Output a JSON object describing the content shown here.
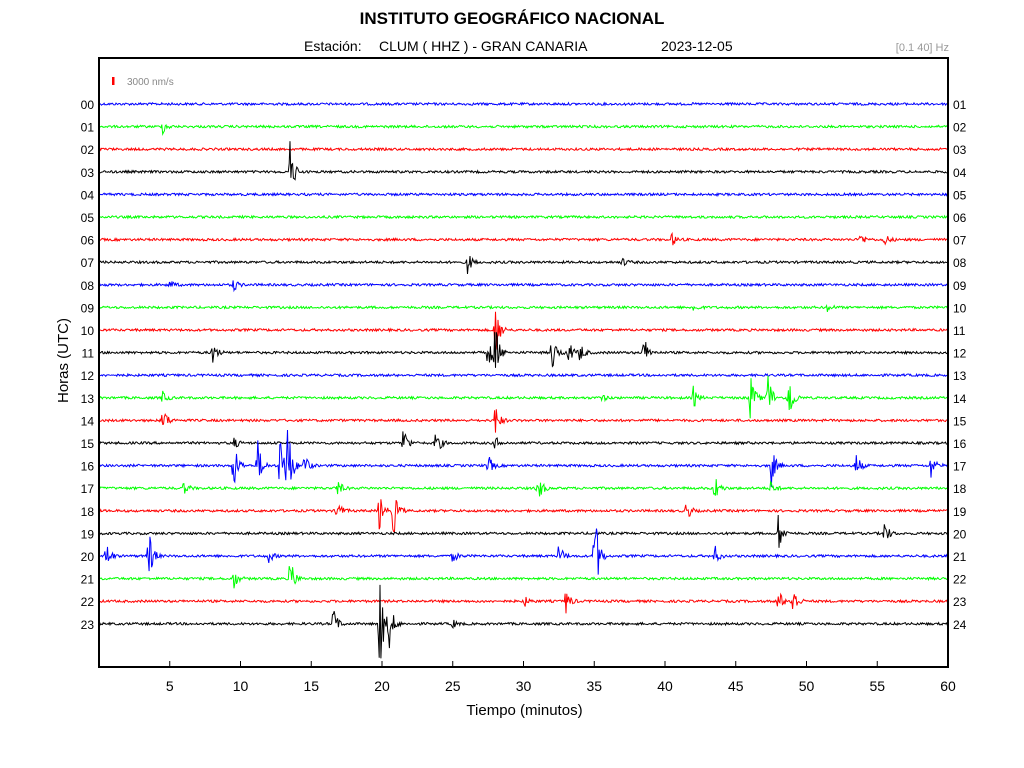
{
  "header": {
    "title": "INSTITUTO GEOGRÁFICO NACIONAL",
    "station_label": "Estación:",
    "station": "CLUM ( HHZ ) - GRAN CANARIA",
    "date": "2023-12-05",
    "filter": "[0.1 40] Hz"
  },
  "chart_data": {
    "type": "line",
    "title": "INSTITUTO GEOGRÁFICO NACIONAL",
    "xlabel": "Tiempo (minutos)",
    "ylabel": "Horas (UTC)",
    "xlim": [
      0,
      60
    ],
    "x_ticks": [
      5,
      10,
      15,
      20,
      25,
      30,
      35,
      40,
      45,
      50,
      55,
      60
    ],
    "scale_label": "3000 nm/s",
    "scale_color": "#ff0000",
    "row_colors": [
      "#0000ff",
      "#00ff00",
      "#ff0000",
      "#000000"
    ],
    "left_labels": [
      "00",
      "01",
      "02",
      "03",
      "04",
      "05",
      "06",
      "07",
      "08",
      "09",
      "10",
      "11",
      "12",
      "13",
      "14",
      "15",
      "16",
      "17",
      "18",
      "19",
      "20",
      "21",
      "22",
      "23"
    ],
    "right_labels": [
      "01",
      "02",
      "03",
      "04",
      "05",
      "06",
      "07",
      "08",
      "09",
      "10",
      "11",
      "12",
      "13",
      "14",
      "15",
      "16",
      "17",
      "18",
      "19",
      "20",
      "21",
      "22",
      "23",
      "24"
    ],
    "events": [
      {
        "hour": 1,
        "min": 4.5,
        "amp": 0.3
      },
      {
        "hour": 3,
        "min": 13.5,
        "amp": 1.4
      },
      {
        "hour": 6,
        "min": 40.5,
        "amp": 0.3
      },
      {
        "hour": 6,
        "min": 53.8,
        "amp": 0.3
      },
      {
        "hour": 6,
        "min": 55.5,
        "amp": 0.3
      },
      {
        "hour": 7,
        "min": 26.0,
        "amp": 0.6
      },
      {
        "hour": 7,
        "min": 37.0,
        "amp": 0.2
      },
      {
        "hour": 8,
        "min": 5.0,
        "amp": 0.2
      },
      {
        "hour": 8,
        "min": 9.5,
        "amp": 0.3
      },
      {
        "hour": 9,
        "min": 42.0,
        "amp": 0.2
      },
      {
        "hour": 9,
        "min": 51.5,
        "amp": 0.2
      },
      {
        "hour": 10,
        "min": 28.0,
        "amp": 1.5
      },
      {
        "hour": 11,
        "min": 8.0,
        "amp": 0.6
      },
      {
        "hour": 11,
        "min": 27.5,
        "amp": 1.0
      },
      {
        "hour": 11,
        "min": 28.0,
        "amp": 1.2
      },
      {
        "hour": 11,
        "min": 32.0,
        "amp": 1.0
      },
      {
        "hour": 11,
        "min": 33.2,
        "amp": 0.6
      },
      {
        "hour": 11,
        "min": 34.0,
        "amp": 0.5
      },
      {
        "hour": 11,
        "min": 38.5,
        "amp": 0.8
      },
      {
        "hour": 13,
        "min": 4.5,
        "amp": 0.3
      },
      {
        "hour": 13,
        "min": 35.5,
        "amp": 0.2
      },
      {
        "hour": 13,
        "min": 42.0,
        "amp": 0.5
      },
      {
        "hour": 13,
        "min": 46.0,
        "amp": 1.3
      },
      {
        "hour": 13,
        "min": 47.2,
        "amp": 1.6
      },
      {
        "hour": 13,
        "min": 48.7,
        "amp": 1.5
      },
      {
        "hour": 14,
        "min": 4.5,
        "amp": 0.7
      },
      {
        "hour": 14,
        "min": 28.0,
        "amp": 0.8
      },
      {
        "hour": 15,
        "min": 9.5,
        "amp": 0.3
      },
      {
        "hour": 15,
        "min": 21.5,
        "amp": 0.8
      },
      {
        "hour": 15,
        "min": 23.8,
        "amp": 0.7
      },
      {
        "hour": 15,
        "min": 28.0,
        "amp": 0.3
      },
      {
        "hour": 16,
        "min": 9.5,
        "amp": 1.3
      },
      {
        "hour": 16,
        "min": 11.2,
        "amp": 1.2
      },
      {
        "hour": 16,
        "min": 12.8,
        "amp": 1.8
      },
      {
        "hour": 16,
        "min": 13.3,
        "amp": 2.3
      },
      {
        "hour": 16,
        "min": 14.5,
        "amp": 0.6
      },
      {
        "hour": 16,
        "min": 27.5,
        "amp": 0.5
      },
      {
        "hour": 16,
        "min": 47.5,
        "amp": 1.0
      },
      {
        "hour": 16,
        "min": 53.5,
        "amp": 0.6
      },
      {
        "hour": 16,
        "min": 58.8,
        "amp": 0.6
      },
      {
        "hour": 17,
        "min": 6.0,
        "amp": 0.3
      },
      {
        "hour": 17,
        "min": 16.8,
        "amp": 0.5
      },
      {
        "hour": 17,
        "min": 31.0,
        "amp": 0.8
      },
      {
        "hour": 17,
        "min": 43.5,
        "amp": 0.7
      },
      {
        "hour": 17,
        "min": 47.5,
        "amp": 0.4
      },
      {
        "hour": 18,
        "min": 16.8,
        "amp": 0.6
      },
      {
        "hour": 18,
        "min": 19.8,
        "amp": 0.9
      },
      {
        "hour": 18,
        "min": 20.8,
        "amp": 1.2
      },
      {
        "hour": 18,
        "min": 41.5,
        "amp": 0.5
      },
      {
        "hour": 19,
        "min": 48.0,
        "amp": 0.9
      },
      {
        "hour": 19,
        "min": 55.5,
        "amp": 0.6
      },
      {
        "hour": 20,
        "min": 0.5,
        "amp": 0.7
      },
      {
        "hour": 20,
        "min": 3.5,
        "amp": 1.3
      },
      {
        "hour": 20,
        "min": 12.0,
        "amp": 0.3
      },
      {
        "hour": 20,
        "min": 25.0,
        "amp": 0.3
      },
      {
        "hour": 20,
        "min": 32.5,
        "amp": 0.6
      },
      {
        "hour": 20,
        "min": 35.0,
        "amp": 2.5
      },
      {
        "hour": 20,
        "min": 43.5,
        "amp": 0.5
      },
      {
        "hour": 21,
        "min": 9.5,
        "amp": 0.5
      },
      {
        "hour": 21,
        "min": 13.5,
        "amp": 1.0
      },
      {
        "hour": 22,
        "min": 30.0,
        "amp": 0.3
      },
      {
        "hour": 22,
        "min": 33.0,
        "amp": 0.6
      },
      {
        "hour": 22,
        "min": 48.0,
        "amp": 0.6
      },
      {
        "hour": 22,
        "min": 49.0,
        "amp": 0.9
      },
      {
        "hour": 23,
        "min": 16.5,
        "amp": 0.9
      },
      {
        "hour": 23,
        "min": 19.8,
        "amp": 2.5
      },
      {
        "hour": 23,
        "min": 20.5,
        "amp": 1.2
      },
      {
        "hour": 23,
        "min": 25.0,
        "amp": 0.2
      }
    ]
  }
}
